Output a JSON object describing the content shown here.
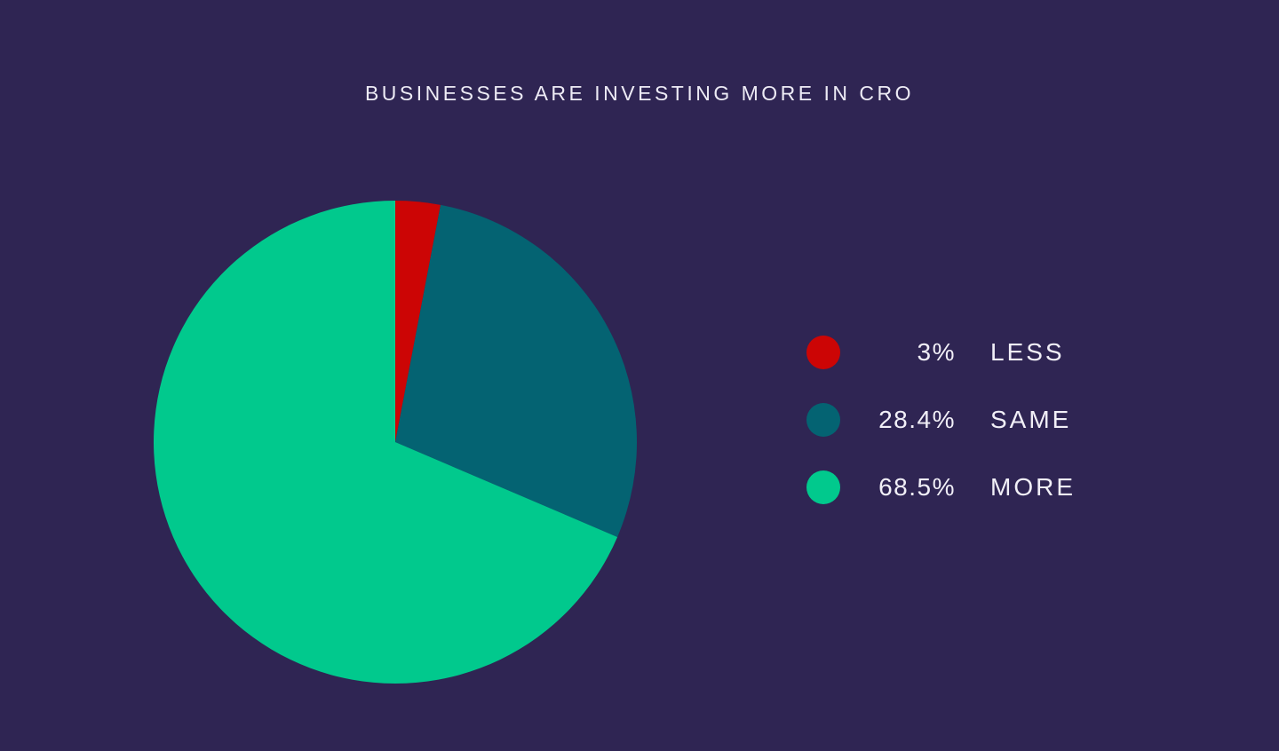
{
  "title": "BUSINESSES ARE INVESTING MORE IN CRO",
  "colors": {
    "background": "#2f2553",
    "text": "#edebf5"
  },
  "chart_data": {
    "type": "pie",
    "title": "BUSINESSES ARE INVESTING MORE IN CRO",
    "start_angle_deg": 0,
    "direction": "clockwise",
    "legend_position": "right",
    "slices": [
      {
        "label": "LESS",
        "percent_label": "3%",
        "value": 3,
        "color": "#cc0505"
      },
      {
        "label": "SAME",
        "percent_label": "28.4%",
        "value": 28.4,
        "color": "#046372"
      },
      {
        "label": "MORE",
        "percent_label": "68.5%",
        "value": 68.5,
        "color": "#01c98d"
      }
    ]
  }
}
